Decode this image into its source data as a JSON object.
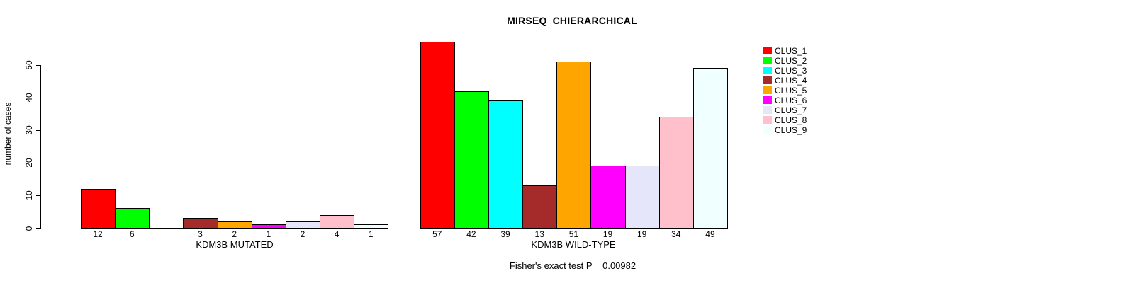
{
  "chart_data": {
    "type": "bar",
    "title": "MIRSEQ_CHIERARCHICAL",
    "ylabel": "number of cases",
    "xlabel": "",
    "ylim": [
      0,
      57
    ],
    "yticks": [
      0,
      10,
      20,
      30,
      40,
      50
    ],
    "grid": false,
    "legend_position": "right-outside",
    "categories": [
      "CLUS_1",
      "CLUS_2",
      "CLUS_3",
      "CLUS_4",
      "CLUS_5",
      "CLUS_6",
      "CLUS_7",
      "CLUS_8",
      "CLUS_9"
    ],
    "colors": [
      "#FF0000",
      "#00FF00",
      "#00FFFF",
      "#A52A2A",
      "#FFA500",
      "#FF00FF",
      "#E6E6FA",
      "#FFC0CB",
      "#F0FFFF"
    ],
    "series": [
      {
        "name": "KDM3B MUTATED",
        "values": [
          12,
          6,
          0,
          3,
          2,
          1,
          2,
          4,
          1
        ]
      },
      {
        "name": "KDM3B WILD-TYPE",
        "values": [
          57,
          42,
          39,
          13,
          51,
          19,
          19,
          34,
          49
        ]
      }
    ],
    "bar_value_labels": true,
    "annotation": "Fisher's exact test P = 0.00982"
  }
}
